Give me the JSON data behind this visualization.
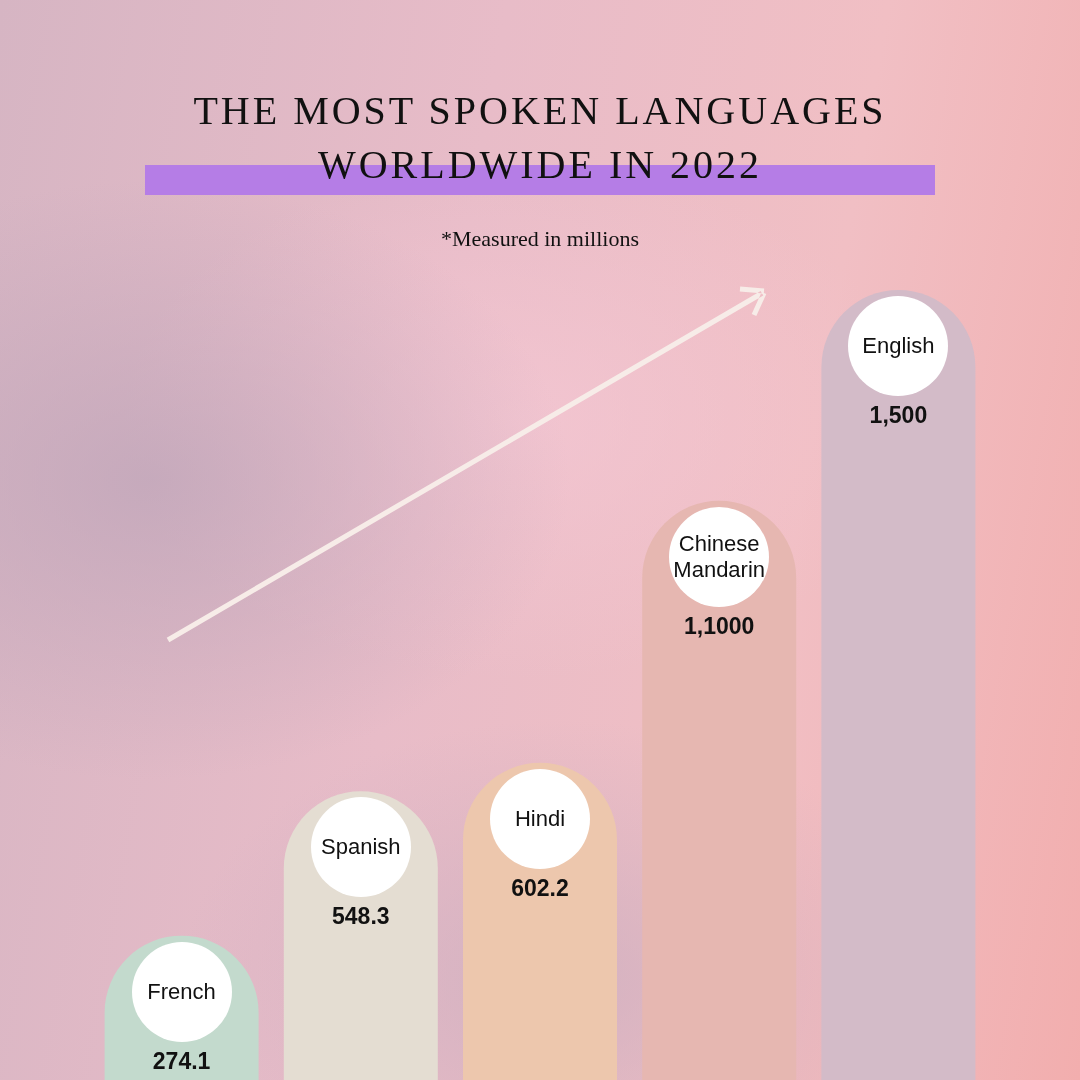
{
  "chart_data": {
    "type": "bar",
    "title": "THE MOST SPOKEN LANGUAGES WORLDWIDE IN 2022",
    "subtitle": "*Measured in millions",
    "categories": [
      "French",
      "Spanish",
      "Hindi",
      "Chinese Mandarin",
      "English"
    ],
    "values": [
      274.1,
      548.3,
      602.2,
      1100,
      1500
    ],
    "value_labels": [
      "274.1",
      "548.3",
      "602.2",
      "1,1000",
      "1,500"
    ],
    "colors": [
      "#c3dacd",
      "#e4ddd2",
      "#edc7ad",
      "#e6b7b1",
      "#d3bbc8"
    ],
    "tick_labels": "x"
  }
}
